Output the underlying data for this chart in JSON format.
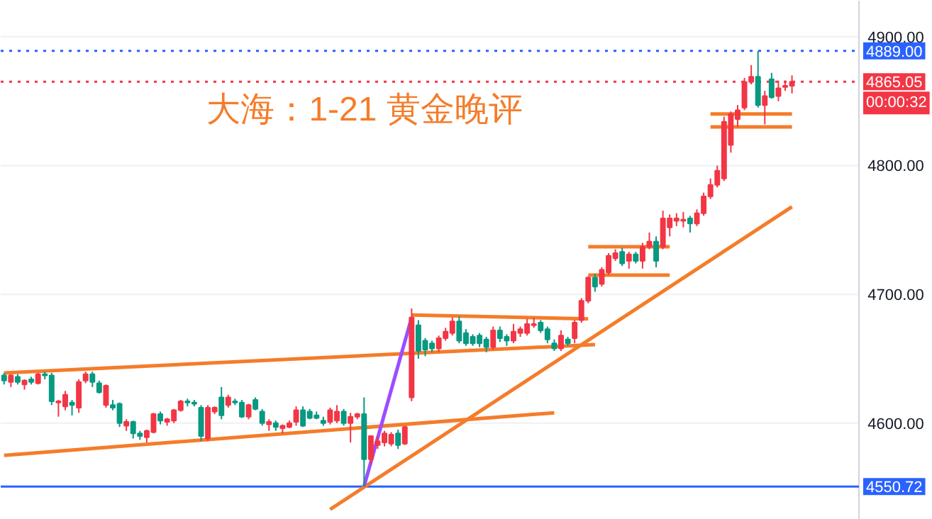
{
  "chart_data": {
    "type": "candlestick",
    "title": "大海：1-21 黄金晚评",
    "categories": [
      null,
      null,
      null,
      null,
      null,
      null,
      null,
      null,
      null,
      null,
      null,
      null,
      null,
      null,
      null,
      null,
      null,
      null,
      null,
      null,
      null,
      null,
      null,
      null,
      null,
      null,
      null,
      null,
      null,
      null,
      null,
      null,
      null,
      null,
      null,
      null,
      null,
      null,
      null,
      null,
      null,
      null,
      null,
      null,
      null,
      null,
      null,
      null,
      null,
      null,
      null,
      null,
      null,
      null,
      null,
      null,
      null,
      null,
      null,
      null,
      null,
      null,
      null,
      null,
      null,
      null,
      null,
      null,
      null,
      null,
      null,
      null,
      null,
      null,
      null,
      null,
      null,
      null,
      null,
      null,
      null,
      null,
      null,
      null,
      null,
      null,
      null,
      null,
      null,
      null,
      null,
      null,
      null,
      null,
      null,
      null,
      null,
      null,
      null,
      null,
      null,
      null,
      null,
      null,
      null,
      null,
      null,
      null,
      null,
      null,
      null,
      null,
      null,
      null,
      null,
      null,
      null
    ],
    "ohlc": [
      [
        4637,
        4639,
        4630,
        4633
      ],
      [
        4632,
        4638,
        4628,
        4637
      ],
      [
        4636,
        4638,
        4630,
        4632
      ],
      [
        4630,
        4634,
        4626,
        4633
      ],
      [
        4634,
        4636,
        4630,
        4632
      ],
      [
        4631,
        4639,
        4630,
        4638
      ],
      [
        4638,
        4640,
        4634,
        4637
      ],
      [
        4637,
        4639,
        4614,
        4617
      ],
      [
        4616,
        4618,
        4605,
        4617
      ],
      [
        4613,
        4625,
        4610,
        4622
      ],
      [
        4616,
        4618,
        4606,
        4614
      ],
      [
        4612,
        4634,
        4608,
        4632
      ],
      [
        4633,
        4640,
        4631,
        4638
      ],
      [
        4638,
        4640,
        4628,
        4632
      ],
      [
        4631,
        4633,
        4623,
        4624
      ],
      [
        4614,
        4630,
        4612,
        4629
      ],
      [
        4614,
        4618,
        4610,
        4612
      ],
      [
        4615,
        4616,
        4597,
        4600
      ],
      [
        4598,
        4603,
        4594,
        4601
      ],
      [
        4601,
        4602,
        4588,
        4592
      ],
      [
        4592,
        4594,
        4587,
        4590
      ],
      [
        4589,
        4595,
        4585,
        4594
      ],
      [
        4593,
        4608,
        4592,
        4607
      ],
      [
        4607,
        4609,
        4599,
        4602
      ],
      [
        4601,
        4604,
        4598,
        4603
      ],
      [
        4602,
        4611,
        4600,
        4610
      ],
      [
        4610,
        4618,
        4609,
        4617
      ],
      [
        4617,
        4619,
        4613,
        4616
      ],
      [
        4616,
        4618,
        4613,
        4615
      ],
      [
        4612,
        4614,
        4586,
        4590
      ],
      [
        4588,
        4614,
        4586,
        4612
      ],
      [
        4609,
        4613,
        4607,
        4612
      ],
      [
        4620,
        4628,
        4603,
        4606
      ],
      [
        4614,
        4622,
        4612,
        4620
      ],
      [
        4617,
        4619,
        4614,
        4616
      ],
      [
        4616,
        4618,
        4604,
        4605
      ],
      [
        4605,
        4615,
        4603,
        4614
      ],
      [
        4618,
        4620,
        4610,
        4611
      ],
      [
        4609,
        4611,
        4598,
        4600
      ],
      [
        4599,
        4603,
        4594,
        4601
      ],
      [
        4600,
        4602,
        4594,
        4597
      ],
      [
        4596,
        4599,
        4592,
        4598
      ],
      [
        4597,
        4602,
        4596,
        4600
      ],
      [
        4601,
        4613,
        4598,
        4610
      ],
      [
        4610,
        4613,
        4597,
        4598
      ],
      [
        4609,
        4611,
        4603,
        4604
      ],
      [
        4606,
        4609,
        4603,
        4604
      ],
      [
        4602,
        4605,
        4598,
        4600
      ],
      [
        4601,
        4612,
        4599,
        4610
      ],
      [
        4602,
        4614,
        4600,
        4609
      ],
      [
        4609,
        4611,
        4598,
        4600
      ],
      [
        4600,
        4608,
        4585,
        4605
      ],
      [
        4605,
        4608,
        4603,
        4607
      ],
      [
        4607,
        4620,
        4550.72,
        4572
      ],
      [
        4572,
        4590,
        4568,
        4590
      ],
      [
        4583,
        4590,
        4580,
        4586
      ],
      [
        4585,
        4594,
        4582,
        4592
      ],
      [
        4584,
        4593,
        4582,
        4591
      ],
      [
        4592,
        4595,
        4580,
        4583
      ],
      [
        4584,
        4598,
        4583,
        4597
      ],
      [
        4620,
        4689,
        4617,
        4682
      ],
      [
        4676,
        4680,
        4650,
        4656
      ],
      [
        4664,
        4666,
        4652,
        4657
      ],
      [
        4662,
        4664,
        4655,
        4658
      ],
      [
        4658,
        4668,
        4655,
        4666
      ],
      [
        4666,
        4674,
        4664,
        4671
      ],
      [
        4670,
        4682,
        4668,
        4679
      ],
      [
        4679,
        4683,
        4662,
        4664
      ],
      [
        4670,
        4673,
        4660,
        4662
      ],
      [
        4667,
        4669,
        4660,
        4662
      ],
      [
        4668,
        4670,
        4659,
        4662
      ],
      [
        4665,
        4667,
        4655,
        4659
      ],
      [
        4659,
        4675,
        4657,
        4672
      ],
      [
        4672,
        4675,
        4663,
        4666
      ],
      [
        4667,
        4669,
        4660,
        4664
      ],
      [
        4664,
        4677,
        4662,
        4671
      ],
      [
        4670,
        4675,
        4667,
        4673
      ],
      [
        4670,
        4681,
        4668,
        4677
      ],
      [
        4676,
        4682,
        4674,
        4677
      ],
      [
        4678,
        4680,
        4670,
        4672
      ],
      [
        4673,
        4675,
        4662,
        4665
      ],
      [
        4662,
        4665,
        4656,
        4658
      ],
      [
        4658,
        4672,
        4656,
        4668
      ],
      [
        4665,
        4667,
        4660,
        4662
      ],
      [
        4666,
        4680,
        4662,
        4678
      ],
      [
        4680,
        4697,
        4678,
        4695
      ],
      [
        4695,
        4714,
        4693,
        4713
      ],
      [
        4713,
        4716,
        4702,
        4706
      ],
      [
        4708,
        4721,
        4706,
        4719
      ],
      [
        4717,
        4732,
        4715,
        4730
      ],
      [
        4728,
        4735,
        4726,
        4732
      ],
      [
        4733,
        4736,
        4722,
        4724
      ],
      [
        4726,
        4733,
        4720,
        4731
      ],
      [
        4731,
        4733,
        4724,
        4726
      ],
      [
        4726,
        4740,
        4720,
        4737
      ],
      [
        4737,
        4748,
        4735,
        4741
      ],
      [
        4741,
        4745,
        4721,
        4726
      ],
      [
        4737,
        4765,
        4735,
        4759
      ],
      [
        4752,
        4762,
        4745,
        4759
      ],
      [
        4757,
        4763,
        4753,
        4759
      ],
      [
        4757,
        4764,
        4752,
        4758
      ],
      [
        4759,
        4761,
        4748,
        4755
      ],
      [
        4755,
        4766,
        4753,
        4763
      ],
      [
        4763,
        4779,
        4761,
        4776
      ],
      [
        4776,
        4790,
        4774,
        4785
      ],
      [
        4785,
        4800,
        4783,
        4796
      ],
      [
        4790,
        4838,
        4788,
        4834
      ],
      [
        4816,
        4842,
        4810,
        4840
      ],
      [
        4836,
        4847,
        4830,
        4843
      ],
      [
        4845,
        4868,
        4843,
        4865
      ],
      [
        4865,
        4878,
        4863,
        4869
      ],
      [
        4869,
        4889,
        4845,
        4847
      ],
      [
        4847,
        4858,
        4832,
        4854
      ],
      [
        4867,
        4872,
        4852,
        4853
      ],
      [
        4854,
        4866,
        4850,
        4860
      ],
      [
        4861,
        4866,
        4858,
        4862
      ],
      [
        4862,
        4870,
        4856,
        4865.05
      ]
    ],
    "colors": [
      "#089981",
      "#f23645",
      "#089981",
      "#f23645",
      "#089981",
      "#f23645",
      "#089981",
      "#089981",
      "#f23645",
      "#f23645",
      "#089981",
      "#f23645",
      "#f23645",
      "#089981",
      "#089981",
      "#f23645",
      "#089981",
      "#089981",
      "#f23645",
      "#089981",
      "#089981",
      "#f23645",
      "#f23645",
      "#089981",
      "#f23645",
      "#f23645",
      "#f23645",
      "#089981",
      "#089981",
      "#089981",
      "#f23645",
      "#f23645",
      "#089981",
      "#f23645",
      "#089981",
      "#089981",
      "#f23645",
      "#089981",
      "#089981",
      "#f23645",
      "#089981",
      "#f23645",
      "#f23645",
      "#f23645",
      "#089981",
      "#089981",
      "#089981",
      "#089981",
      "#f23645",
      "#f23645",
      "#089981",
      "#f23645",
      "#f23645",
      "#089981",
      "#f23645",
      "#f23645",
      "#f23645",
      "#f23645",
      "#089981",
      "#f23645",
      "#f23645",
      "#089981",
      "#089981",
      "#089981",
      "#f23645",
      "#f23645",
      "#f23645",
      "#089981",
      "#089981",
      "#089981",
      "#089981",
      "#089981",
      "#f23645",
      "#089981",
      "#089981",
      "#f23645",
      "#f23645",
      "#f23645",
      "#f23645",
      "#089981",
      "#089981",
      "#089981",
      "#f23645",
      "#089981",
      "#f23645",
      "#f23645",
      "#f23645",
      "#089981",
      "#f23645",
      "#f23645",
      "#f23645",
      "#089981",
      "#f23645",
      "#089981",
      "#f23645",
      "#f23645",
      "#089981",
      "#f23645",
      "#f23645",
      "#f23645",
      "#f23645",
      "#089981",
      "#f23645",
      "#f23645",
      "#f23645",
      "#f23645",
      "#f23645",
      "#f23645",
      "#f23645",
      "#f23645",
      "#f23645",
      "#089981",
      "#f23645",
      "#089981",
      "#f23645",
      "#f23645",
      "#f23645"
    ],
    "series": [
      {
        "type": "line",
        "color": "#f57c2a",
        "values": [
          4639,
          null,
          null,
          null,
          null,
          null,
          null,
          null,
          null,
          null,
          null,
          null,
          null,
          null,
          null,
          null,
          null,
          null,
          null,
          null,
          null,
          null,
          null,
          null,
          null,
          null,
          null,
          null,
          null,
          null,
          null,
          null,
          null,
          null,
          null,
          null,
          null,
          null,
          null,
          null,
          null,
          null,
          null,
          null,
          null,
          null,
          null,
          null,
          null,
          null,
          null,
          null,
          null,
          null,
          null,
          null,
          null,
          null,
          null,
          null,
          null,
          null,
          null,
          null,
          null,
          null,
          null,
          null,
          null,
          null,
          null,
          null,
          null,
          null,
          null,
          null,
          null,
          null,
          null,
          null,
          null,
          null,
          null,
          null,
          null,
          null,
          null,
          4661,
          null,
          null,
          null,
          null,
          null,
          null,
          null,
          null,
          null,
          null,
          null,
          null,
          null,
          null,
          null,
          null,
          null,
          null,
          null,
          null,
          null,
          null,
          null,
          null,
          null,
          null,
          null,
          null,
          null
        ]
      },
      {
        "type": "line",
        "color": "#f57c2a",
        "values": [
          4575,
          null,
          null,
          null,
          null,
          null,
          null,
          null,
          null,
          null,
          null,
          null,
          null,
          null,
          null,
          null,
          null,
          null,
          null,
          null,
          null,
          null,
          null,
          null,
          null,
          null,
          null,
          null,
          null,
          null,
          null,
          null,
          null,
          null,
          null,
          null,
          null,
          null,
          null,
          null,
          null,
          null,
          null,
          null,
          null,
          null,
          null,
          null,
          null,
          null,
          null,
          null,
          null,
          null,
          null,
          null,
          null,
          null,
          null,
          null,
          null,
          null,
          null,
          null,
          null,
          null,
          null,
          null,
          null,
          null,
          null,
          null,
          null,
          null,
          null,
          null,
          null,
          null,
          null,
          null,
          null,
          4608,
          null,
          null,
          null,
          null,
          null,
          null,
          null,
          null,
          null,
          null,
          null,
          null,
          null,
          null,
          null,
          null,
          null,
          null,
          null,
          null,
          null,
          null,
          null,
          null,
          null,
          null,
          null,
          null,
          null,
          null,
          null,
          null,
          null,
          null,
          null
        ]
      },
      {
        "type": "line",
        "color": "#f57c2a",
        "values": [
          null,
          null,
          null,
          null,
          null,
          null,
          null,
          null,
          null,
          null,
          null,
          null,
          null,
          null,
          null,
          null,
          null,
          null,
          null,
          null,
          null,
          null,
          null,
          null,
          null,
          null,
          null,
          null,
          null,
          null,
          null,
          null,
          null,
          null,
          null,
          null,
          null,
          null,
          null,
          null,
          null,
          null,
          null,
          null,
          null,
          null,
          null,
          null,
          null,
          null,
          null,
          null,
          null,
          null,
          null,
          null,
          null,
          null,
          null,
          null,
          4684,
          null,
          null,
          null,
          null,
          null,
          null,
          null,
          null,
          null,
          null,
          null,
          null,
          null,
          null,
          null,
          null,
          null,
          null,
          null,
          null,
          null,
          null,
          null,
          null,
          null,
          4681,
          null,
          null,
          null,
          null,
          null,
          null,
          null,
          null,
          null,
          null,
          null,
          null,
          null,
          null,
          null,
          null,
          null,
          null,
          null,
          null,
          null,
          null,
          null,
          null,
          null,
          null,
          null,
          null,
          null,
          null
        ]
      },
      {
        "type": "line",
        "color": "#f57c2a",
        "values": [
          null,
          null,
          null,
          null,
          null,
          null,
          null,
          null,
          null,
          null,
          null,
          null,
          null,
          null,
          null,
          null,
          null,
          null,
          null,
          null,
          null,
          null,
          null,
          null,
          null,
          null,
          null,
          null,
          null,
          null,
          null,
          null,
          null,
          null,
          null,
          null,
          null,
          null,
          null,
          null,
          null,
          null,
          null,
          null,
          null,
          null,
          null,
          null,
          4533,
          null,
          null,
          null,
          null,
          null,
          null,
          null,
          null,
          null,
          null,
          null,
          null,
          null,
          null,
          null,
          null,
          null,
          null,
          null,
          null,
          null,
          null,
          null,
          null,
          null,
          null,
          null,
          null,
          null,
          null,
          null,
          null,
          null,
          null,
          null,
          null,
          null,
          null,
          null,
          null,
          null,
          null,
          null,
          null,
          null,
          null,
          null,
          null,
          null,
          null,
          null,
          null,
          null,
          null,
          null,
          null,
          null,
          null,
          null,
          null,
          null,
          null,
          null,
          null,
          null,
          null,
          null,
          4768
        ]
      },
      {
        "type": "line",
        "color": "#f57c2a",
        "values": [
          null,
          null,
          null,
          null,
          null,
          null,
          null,
          null,
          null,
          null,
          null,
          null,
          null,
          null,
          null,
          null,
          null,
          null,
          null,
          null,
          null,
          null,
          null,
          null,
          null,
          null,
          null,
          null,
          null,
          null,
          null,
          null,
          null,
          null,
          null,
          null,
          null,
          null,
          null,
          null,
          null,
          null,
          null,
          null,
          null,
          null,
          null,
          null,
          null,
          null,
          null,
          null,
          null,
          null,
          null,
          null,
          null,
          null,
          null,
          null,
          null,
          null,
          null,
          null,
          null,
          null,
          null,
          null,
          null,
          null,
          null,
          null,
          null,
          null,
          null,
          null,
          null,
          null,
          null,
          null,
          null,
          null,
          null,
          null,
          null,
          null,
          4737,
          null,
          null,
          null,
          null,
          null,
          null,
          null,
          null,
          null,
          null,
          null,
          4737,
          null,
          null,
          null,
          null,
          null,
          null,
          null,
          null,
          null,
          null,
          null,
          null,
          null,
          null,
          null,
          null,
          null,
          null
        ]
      },
      {
        "type": "line",
        "color": "#f57c2a",
        "values": [
          null,
          null,
          null,
          null,
          null,
          null,
          null,
          null,
          null,
          null,
          null,
          null,
          null,
          null,
          null,
          null,
          null,
          null,
          null,
          null,
          null,
          null,
          null,
          null,
          null,
          null,
          null,
          null,
          null,
          null,
          null,
          null,
          null,
          null,
          null,
          null,
          null,
          null,
          null,
          null,
          null,
          null,
          null,
          null,
          null,
          null,
          null,
          null,
          null,
          null,
          null,
          null,
          null,
          null,
          null,
          null,
          null,
          null,
          null,
          null,
          null,
          null,
          null,
          null,
          null,
          null,
          null,
          null,
          null,
          null,
          null,
          null,
          null,
          null,
          null,
          null,
          null,
          null,
          null,
          null,
          null,
          null,
          null,
          null,
          null,
          null,
          4715,
          null,
          null,
          null,
          null,
          null,
          null,
          null,
          null,
          null,
          null,
          null,
          4715,
          null,
          null,
          null,
          null,
          null,
          null,
          null,
          null,
          null,
          null,
          null,
          null,
          null,
          null,
          null,
          null,
          null,
          null
        ]
      },
      {
        "type": "line",
        "color": "#f57c2a",
        "values": [
          null,
          null,
          null,
          null,
          null,
          null,
          null,
          null,
          null,
          null,
          null,
          null,
          null,
          null,
          null,
          null,
          null,
          null,
          null,
          null,
          null,
          null,
          null,
          null,
          null,
          null,
          null,
          null,
          null,
          null,
          null,
          null,
          null,
          null,
          null,
          null,
          null,
          null,
          null,
          null,
          null,
          null,
          null,
          null,
          null,
          null,
          null,
          null,
          null,
          null,
          null,
          null,
          null,
          null,
          null,
          null,
          null,
          null,
          null,
          null,
          null,
          null,
          null,
          null,
          null,
          null,
          null,
          null,
          null,
          null,
          null,
          null,
          null,
          null,
          null,
          null,
          null,
          null,
          null,
          null,
          null,
          null,
          null,
          null,
          null,
          null,
          null,
          null,
          null,
          null,
          null,
          null,
          null,
          null,
          null,
          null,
          null,
          null,
          null,
          null,
          null,
          null,
          null,
          null,
          4840,
          null,
          null,
          null,
          null,
          null,
          null,
          null,
          null,
          null,
          null,
          null,
          4840
        ]
      },
      {
        "type": "line",
        "color": "#f57c2a",
        "values": [
          null,
          null,
          null,
          null,
          null,
          null,
          null,
          null,
          null,
          null,
          null,
          null,
          null,
          null,
          null,
          null,
          null,
          null,
          null,
          null,
          null,
          null,
          null,
          null,
          null,
          null,
          null,
          null,
          null,
          null,
          null,
          null,
          null,
          null,
          null,
          null,
          null,
          null,
          null,
          null,
          null,
          null,
          null,
          null,
          null,
          null,
          null,
          null,
          null,
          null,
          null,
          null,
          null,
          null,
          null,
          null,
          null,
          null,
          null,
          null,
          null,
          null,
          null,
          null,
          null,
          null,
          null,
          null,
          null,
          null,
          null,
          null,
          null,
          null,
          null,
          null,
          null,
          null,
          null,
          null,
          null,
          null,
          null,
          null,
          null,
          null,
          null,
          null,
          null,
          null,
          null,
          null,
          null,
          null,
          null,
          null,
          null,
          null,
          null,
          null,
          null,
          null,
          null,
          null,
          4830,
          null,
          null,
          null,
          null,
          null,
          null,
          null,
          null,
          null,
          null,
          null,
          4830
        ]
      },
      {
        "type": "line",
        "color": "#9c4dff",
        "values": [
          null,
          null,
          null,
          null,
          null,
          null,
          null,
          null,
          null,
          null,
          null,
          null,
          null,
          null,
          null,
          null,
          null,
          null,
          null,
          null,
          null,
          null,
          null,
          null,
          null,
          null,
          null,
          null,
          null,
          null,
          null,
          null,
          null,
          null,
          null,
          null,
          null,
          null,
          null,
          null,
          null,
          null,
          null,
          null,
          null,
          null,
          null,
          null,
          null,
          null,
          null,
          null,
          null,
          4551,
          null,
          null,
          null,
          null,
          null,
          null,
          4682,
          null,
          null,
          null,
          null,
          null,
          null,
          null,
          null,
          null,
          null,
          null,
          null,
          null,
          null,
          null,
          null,
          null,
          null,
          null,
          null,
          null,
          null,
          null,
          null,
          null,
          null,
          null,
          null,
          null,
          null,
          null,
          null,
          null,
          null,
          null,
          null,
          null,
          null,
          null,
          null,
          null,
          null,
          null,
          null,
          null,
          null,
          null,
          null,
          null,
          null,
          null,
          null,
          null,
          null,
          null,
          null
        ]
      }
    ],
    "ylim": [
      4525,
      4928
    ],
    "yticks": [
      {
        "value": 4600,
        "label": "4600.00"
      },
      {
        "value": 4700,
        "label": "4700.00"
      },
      {
        "value": 4800,
        "label": "4800.00"
      },
      {
        "value": 4900,
        "label": "4900.00"
      }
    ],
    "ref_lines": [
      {
        "axis": "y",
        "value": 4889,
        "label": "4889.00",
        "color": "#2962ff",
        "line_style": "dotted"
      },
      {
        "axis": "y",
        "value": 4865.05,
        "label": "4865.05",
        "color": "#f23645",
        "line_style": "dotted"
      },
      {
        "axis": "y",
        "value": 4550.72,
        "label": "4550.72",
        "color": "#2962ff",
        "line_style": "solid"
      }
    ],
    "annotations": [
      "00:00:32"
    ],
    "grid": "y",
    "tick_labels": "y",
    "marker": "none"
  }
}
